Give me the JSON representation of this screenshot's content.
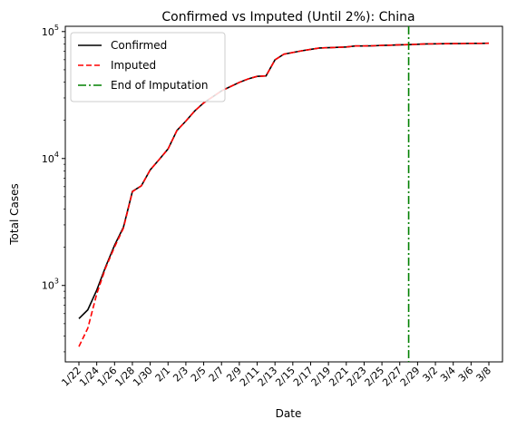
{
  "chart_data": {
    "type": "line",
    "title": "Confirmed vs Imputed (Until 2%): China",
    "xlabel": "Date",
    "ylabel": "Total Cases",
    "y_scale": "log",
    "ylim": [
      250,
      110000
    ],
    "y_ticks": [
      {
        "value": 1000,
        "base": "10",
        "exp": "3"
      },
      {
        "value": 10000,
        "base": "10",
        "exp": "4"
      },
      {
        "value": 100000,
        "base": "10",
        "exp": "5"
      }
    ],
    "x": [
      "1/22",
      "1/23",
      "1/24",
      "1/25",
      "1/26",
      "1/27",
      "1/28",
      "1/29",
      "1/30",
      "1/31",
      "2/1",
      "2/2",
      "2/3",
      "2/4",
      "2/5",
      "2/6",
      "2/7",
      "2/8",
      "2/9",
      "2/10",
      "2/11",
      "2/12",
      "2/13",
      "2/14",
      "2/15",
      "2/16",
      "2/17",
      "2/18",
      "2/19",
      "2/20",
      "2/21",
      "2/22",
      "2/23",
      "2/24",
      "2/25",
      "2/26",
      "2/27",
      "2/28",
      "2/29",
      "3/1",
      "3/2",
      "3/3",
      "3/4",
      "3/5",
      "3/6",
      "3/7",
      "3/8"
    ],
    "x_tick_labels": [
      "1/22",
      "1/24",
      "1/26",
      "1/28",
      "1/30",
      "2/1",
      "2/3",
      "2/5",
      "2/7",
      "2/9",
      "2/11",
      "2/13",
      "2/15",
      "2/17",
      "2/19",
      "2/21",
      "2/23",
      "2/25",
      "2/27",
      "2/29",
      "3/2",
      "3/4",
      "3/6",
      "3/8"
    ],
    "series": [
      {
        "name": "Confirmed",
        "color": "#000000",
        "style": "solid",
        "values": [
          548,
          643,
          920,
          1406,
          2075,
          2877,
          5509,
          6087,
          8141,
          9802,
          11891,
          16630,
          19716,
          23707,
          27440,
          30587,
          34110,
          36814,
          39829,
          42354,
          44386,
          44759,
          59895,
          66358,
          68413,
          70513,
          72434,
          74211,
          74619,
          75077,
          75550,
          77001,
          77022,
          77241,
          77754,
          78166,
          78600,
          78928,
          79356,
          79932,
          80136,
          80261,
          80386,
          80537,
          80690,
          80770,
          80823
        ]
      },
      {
        "name": "Imputed",
        "color": "#ff0000",
        "style": "dashed",
        "values": [
          330,
          460,
          860,
          1380,
          2010,
          2830,
          5480,
          6087,
          8141,
          9802,
          11891,
          16630,
          19716,
          23707,
          27440,
          30587,
          34110,
          36814,
          39829,
          42354,
          44386,
          44759,
          59895,
          66358,
          68413,
          70513,
          72434,
          74211,
          74619,
          75077,
          75550,
          77001,
          77022,
          77241,
          77754,
          78166,
          78600,
          78928,
          79356,
          79932,
          80136,
          80261,
          80386,
          80537,
          80690,
          80770,
          80823
        ]
      }
    ],
    "markers": [
      {
        "name": "End of Imputation",
        "x": "2/28",
        "color": "#008000",
        "style": "dashdot"
      }
    ],
    "legend": {
      "placement": "top-left",
      "entries": [
        {
          "label": "Confirmed",
          "color": "#000000",
          "style": "solid"
        },
        {
          "label": "Imputed",
          "color": "#ff0000",
          "style": "dashed"
        },
        {
          "label": "End of Imputation",
          "color": "#008000",
          "style": "dashdot"
        }
      ]
    },
    "grid": false
  }
}
